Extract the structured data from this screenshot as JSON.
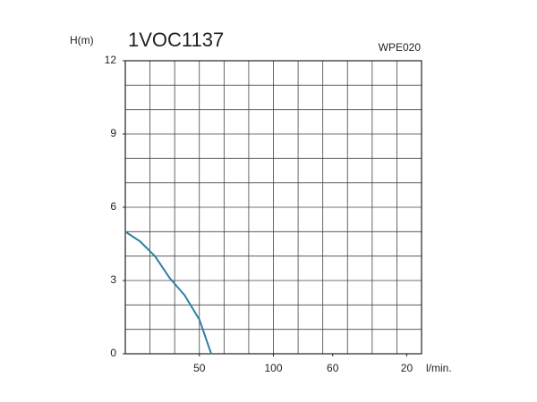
{
  "chart_data": {
    "type": "line",
    "title": "1VOC1137",
    "subtitle": "WPE020",
    "y_label": "H(m)",
    "x_label": "l/min.",
    "x": [
      0,
      10,
      20,
      30,
      40,
      50,
      58
    ],
    "series": [
      {
        "color": "#2f7fa6",
        "values": [
          5,
          4.6,
          4.0,
          3.1,
          2.4,
          1.4,
          0
        ]
      }
    ],
    "xlim": [
      0,
      200
    ],
    "xticks": [
      50,
      100,
      {
        "value": 140,
        "label": "60"
      },
      {
        "value": 190,
        "label": "20"
      }
    ],
    "ylim": [
      0,
      12
    ],
    "yticks": [
      0,
      3,
      6,
      9,
      12
    ],
    "grid": true
  }
}
